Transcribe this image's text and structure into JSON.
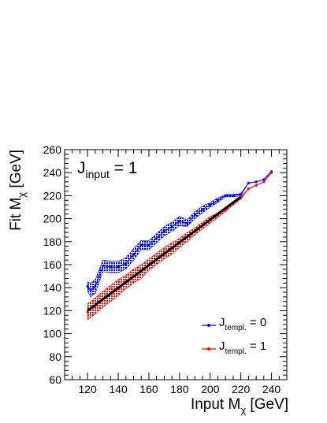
{
  "chart_data": {
    "type": "line",
    "xlabel": "Input M",
    "xlabel_sub": "χ",
    "xlabel_unit": " [GeV]",
    "ylabel": "Fit M",
    "ylabel_sub": "χ",
    "ylabel_unit": " [GeV]",
    "xlim": [
      105,
      250
    ],
    "ylim": [
      60,
      260
    ],
    "xticks": [
      120,
      140,
      160,
      180,
      200,
      220,
      240
    ],
    "yticks": [
      60,
      80,
      100,
      120,
      140,
      160,
      180,
      200,
      220,
      240,
      260
    ],
    "annotation": {
      "text": "J",
      "sub": "input",
      "rest": " = 1"
    },
    "reference_line": {
      "x": [
        120,
        220
      ],
      "y": [
        120,
        219
      ]
    },
    "series": [
      {
        "name": "J",
        "name_sub": "templ.",
        "name_rest": " = 0",
        "color": "#0000ff",
        "x": [
          120,
          122,
          125,
          130,
          135,
          140,
          145,
          150,
          155,
          160,
          165,
          170,
          175,
          180,
          185,
          190,
          195,
          200,
          205,
          210,
          215,
          220,
          225,
          230,
          235,
          240
        ],
        "y": [
          141,
          138,
          141,
          159,
          158,
          158,
          161,
          169,
          177,
          177,
          183,
          189,
          193,
          198,
          196,
          203,
          208,
          212,
          216,
          220,
          220,
          221,
          231,
          232,
          234,
          241
        ],
        "band_width": [
          4,
          6,
          6,
          5,
          5,
          5,
          5,
          5,
          4,
          4,
          4,
          4,
          4,
          4,
          3,
          3,
          3,
          2,
          2,
          1,
          1,
          1,
          0,
          0,
          0,
          0
        ]
      },
      {
        "name": "J",
        "name_sub": "templ.",
        "name_rest": " = 1",
        "color": "#ff0000",
        "x": [
          120,
          125,
          130,
          135,
          140,
          145,
          150,
          155,
          160,
          165,
          170,
          175,
          180,
          185,
          190,
          195,
          200,
          205,
          210,
          215,
          220,
          225,
          230,
          235,
          240
        ],
        "y": [
          119,
          124,
          130,
          135,
          140,
          145,
          150,
          154,
          160,
          165,
          170,
          174,
          179,
          184,
          189,
          194,
          199,
          203,
          208,
          213,
          218,
          226,
          229,
          232,
          240
        ],
        "band_width": [
          7,
          7,
          7,
          7,
          7,
          6,
          6,
          6,
          5,
          5,
          5,
          5,
          4,
          4,
          3,
          3,
          3,
          2,
          2,
          1,
          1,
          0,
          0,
          0,
          0
        ]
      }
    ]
  }
}
